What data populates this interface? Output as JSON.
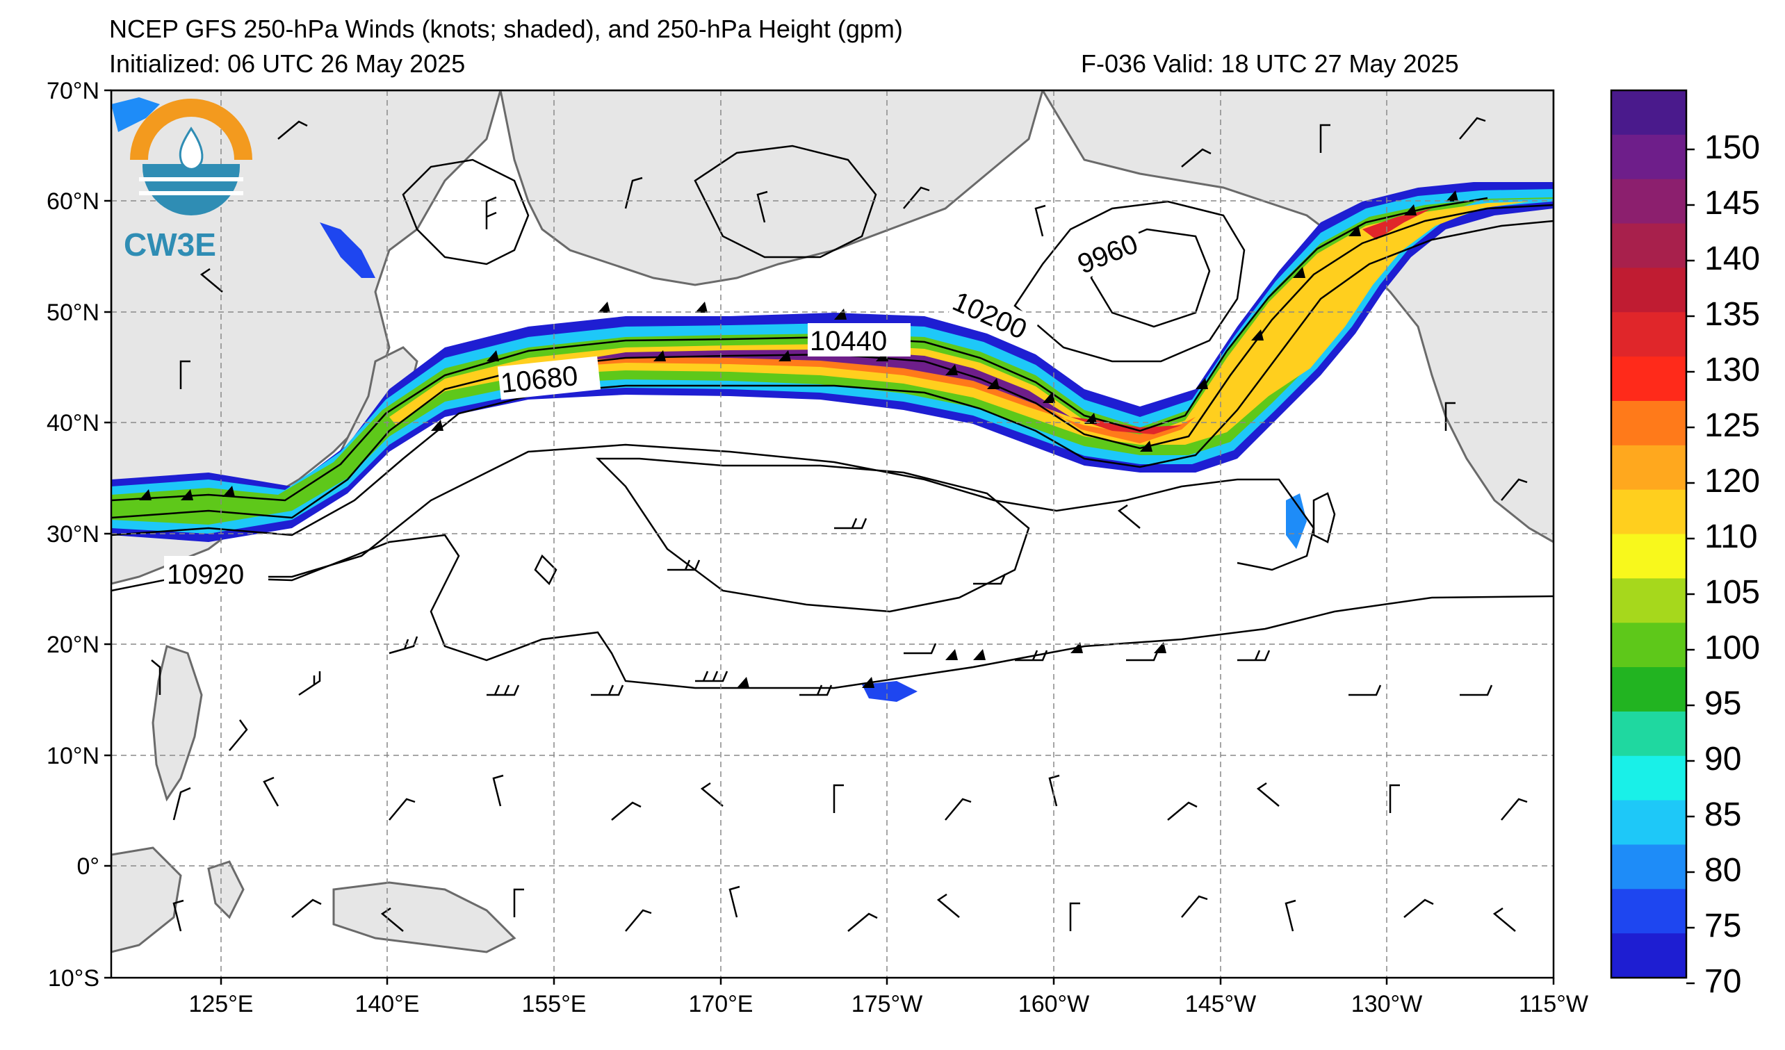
{
  "title": "NCEP GFS 250-hPa Winds (knots; shaded), and 250-hPa Height (gpm)",
  "initialized": "Initialized: 06 UTC 26 May 2025",
  "valid": "F-036  Valid: 18 UTC 27 May 2025",
  "logo": {
    "name": "cw3e-logo",
    "text": "CW3E"
  },
  "axes": {
    "lat_labels": [
      "70°N",
      "60°N",
      "50°N",
      "40°N",
      "30°N",
      "20°N",
      "10°N",
      "0°",
      "10°S"
    ],
    "lon_labels": [
      "125°E",
      "140°E",
      "155°E",
      "170°E",
      "175°W",
      "160°W",
      "145°W",
      "130°W",
      "115°W"
    ]
  },
  "colorbar": {
    "labels": [
      "150",
      "145",
      "140",
      "135",
      "130",
      "125",
      "120",
      "110",
      "105",
      "100",
      "95",
      "90",
      "85",
      "80",
      "75",
      "70"
    ],
    "colors": [
      "#4a1a8c",
      "#6e1e8a",
      "#8c1f6e",
      "#a8204c",
      "#c01c32",
      "#e0262a",
      "#ff2a1a",
      "#ff7a1a",
      "#ffa81e",
      "#ffcf1e",
      "#f8f81c",
      "#a6d81c",
      "#5ec81a",
      "#22b421",
      "#1fd8a0",
      "#19f0e8",
      "#1ec8f8",
      "#1e8cf8",
      "#1e46f0",
      "#1e1ed2"
    ]
  },
  "contours": [
    "9960",
    "10200",
    "10440",
    "10680",
    "10920"
  ],
  "colors": {
    "land": "#e6e6e6",
    "coast": "#6a6a6a",
    "grid": "#888888"
  }
}
